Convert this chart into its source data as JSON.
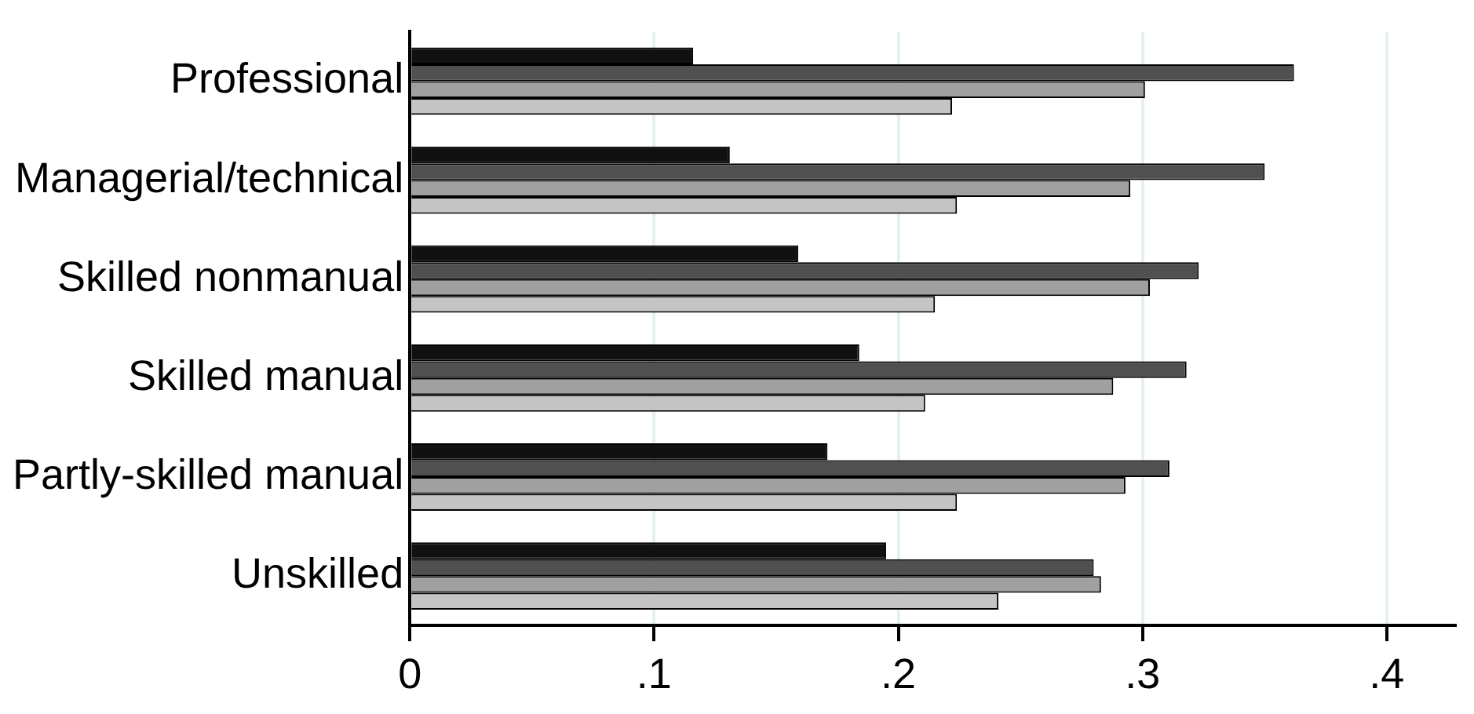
{
  "chart_data": {
    "type": "bar",
    "orientation": "horizontal",
    "categories": [
      "Professional",
      "Managerial/technical",
      "Skilled nonmanual",
      "Skilled manual",
      "Partly-skilled manual",
      "Unskilled"
    ],
    "series": [
      {
        "color": "#111111",
        "values": [
          0.116,
          0.131,
          0.159,
          0.184,
          0.171,
          0.195
        ]
      },
      {
        "color": "#505050",
        "values": [
          0.362,
          0.35,
          0.323,
          0.318,
          0.311,
          0.28
        ]
      },
      {
        "color": "#a0a0a0",
        "values": [
          0.301,
          0.295,
          0.303,
          0.288,
          0.293,
          0.283
        ]
      },
      {
        "color": "#c4c4c4",
        "values": [
          0.222,
          0.224,
          0.215,
          0.211,
          0.224,
          0.241
        ]
      }
    ],
    "xlim": [
      0,
      0.428
    ],
    "xticks": [
      {
        "value": 0,
        "label": "0"
      },
      {
        "value": 0.1,
        "label": ".1"
      },
      {
        "value": 0.2,
        "label": ".2"
      },
      {
        "value": 0.3,
        "label": ".3"
      },
      {
        "value": 0.4,
        "label": ".4"
      }
    ],
    "grid": "x",
    "legend": false
  }
}
